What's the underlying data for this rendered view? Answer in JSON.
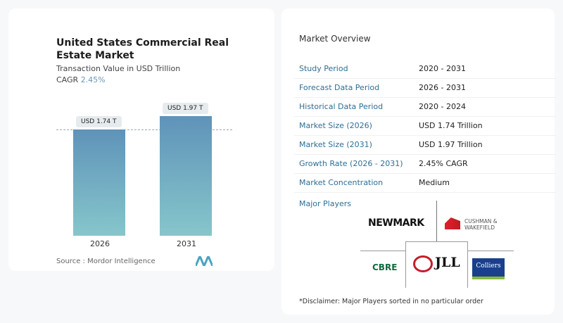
{
  "card": {
    "title": "United States Commercial Real Estate Market",
    "subtitle": "Transaction Value in USD Trillion",
    "cagr_label": "CAGR",
    "cagr_value": "2.45%",
    "source": "Source :  Mordor Intelligence"
  },
  "chart_data": {
    "type": "bar",
    "categories": [
      "2026",
      "2031"
    ],
    "values": [
      1.74,
      1.97
    ],
    "data_labels": [
      "USD 1.74 T",
      "USD 1.97 T"
    ],
    "ylabel": "",
    "xlabel": "",
    "colors": [
      "#5f93b9",
      "#86c6cb"
    ]
  },
  "overview": {
    "title": "Market Overview",
    "rows": [
      {
        "label": "Study Period",
        "value": "2020 - 2031"
      },
      {
        "label": "Forecast Data Period",
        "value": "2026 - 2031"
      },
      {
        "label": "Historical Data Period",
        "value": "2020 - 2024"
      },
      {
        "label": "Market Size (2026)",
        "value": "USD 1.74 Trillion"
      },
      {
        "label": "Market Size (2031)",
        "value": "USD 1.97 Trillion"
      },
      {
        "label": "Growth Rate (2026 - 2031)",
        "value": "2.45% CAGR"
      },
      {
        "label": "Market Concentration",
        "value": "Medium"
      }
    ]
  },
  "players": {
    "title": "Major Players",
    "logos": [
      "NEWMARK",
      "CUSHMAN & WAKEFIELD",
      "CBRE",
      "JLL",
      "Colliers"
    ]
  },
  "disclaimer": "*Disclaimer: Major Players sorted in no particular order"
}
